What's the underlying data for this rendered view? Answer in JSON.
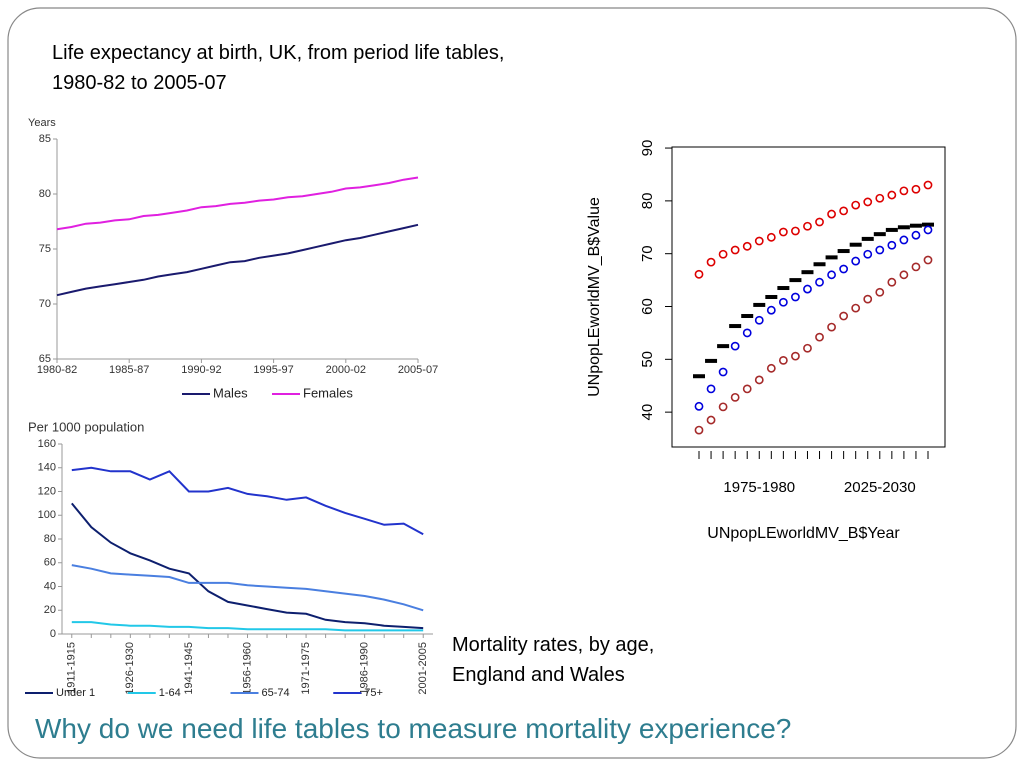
{
  "slide_title": "Why do we need life tables to measure mortality experience?",
  "chart_data": [
    {
      "type": "line",
      "title": "Life expectancy at birth, UK, from period life tables, 1980-82 to 2005-07",
      "ylabel": "Years",
      "categories": [
        "1980-82",
        null,
        null,
        null,
        null,
        "1985-87",
        null,
        null,
        null,
        null,
        "1990-92",
        null,
        null,
        null,
        null,
        "1995-97",
        null,
        null,
        null,
        null,
        "2000-02",
        null,
        null,
        null,
        null,
        "2005-07"
      ],
      "series": [
        {
          "name": "Males",
          "color": "#1a1a6e",
          "values": [
            70.8,
            71.1,
            71.4,
            71.6,
            71.8,
            72.0,
            72.2,
            72.5,
            72.7,
            72.9,
            73.2,
            73.5,
            73.8,
            73.9,
            74.2,
            74.4,
            74.6,
            74.9,
            75.2,
            75.5,
            75.8,
            76.0,
            76.3,
            76.6,
            76.9,
            77.2
          ]
        },
        {
          "name": "Females",
          "color": "#e020e0",
          "values": [
            76.8,
            77.0,
            77.3,
            77.4,
            77.6,
            77.7,
            78.0,
            78.1,
            78.3,
            78.5,
            78.8,
            78.9,
            79.1,
            79.2,
            79.4,
            79.5,
            79.7,
            79.8,
            80.0,
            80.2,
            80.5,
            80.6,
            80.8,
            81.0,
            81.3,
            81.5
          ]
        }
      ],
      "ylim": [
        65,
        85
      ],
      "yticks": [
        65,
        70,
        75,
        80,
        85
      ],
      "legend": "bottom"
    },
    {
      "type": "line",
      "title": "Mortality rates, by age, England and Wales",
      "ylabel": "Per 1000 population",
      "categories": [
        "1911-1915",
        null,
        null,
        "1926-1930",
        null,
        null,
        "1941-1945",
        null,
        null,
        "1956-1960",
        null,
        null,
        "1971-1975",
        null,
        null,
        "1986-1990",
        null,
        null,
        "2001-2005"
      ],
      "series": [
        {
          "name": "Under 1",
          "color": "#0d1f6e",
          "values": [
            110,
            90,
            77,
            68,
            62,
            55,
            51,
            36,
            27,
            24,
            21,
            18,
            17,
            12,
            10,
            9,
            7,
            6,
            5
          ]
        },
        {
          "name": "1-64",
          "color": "#22c8e8",
          "values": [
            10,
            10,
            8,
            7,
            7,
            6,
            6,
            5,
            5,
            4,
            4,
            4,
            4,
            4,
            3,
            3,
            3,
            3,
            3
          ]
        },
        {
          "name": "65-74",
          "color": "#4a7fe0",
          "values": [
            58,
            55,
            51,
            50,
            49,
            48,
            43,
            43,
            43,
            41,
            40,
            39,
            38,
            36,
            34,
            32,
            29,
            25,
            20
          ]
        },
        {
          "name": "75+",
          "color": "#2233cc",
          "values": [
            138,
            140,
            137,
            137,
            130,
            137,
            120,
            120,
            123,
            118,
            116,
            113,
            115,
            108,
            102,
            97,
            92,
            93,
            84
          ]
        }
      ],
      "ylim": [
        0,
        160
      ],
      "yticks": [
        0,
        20,
        40,
        60,
        80,
        100,
        120,
        140,
        160
      ],
      "legend": "bottom"
    },
    {
      "type": "scatter",
      "xlabel": "UNpopLEworldMV_B$Year",
      "ylabel": "UNpopLEworldMV_B$Value",
      "categories": [
        null,
        null,
        null,
        null,
        null,
        "1975-1980",
        null,
        null,
        null,
        null,
        null,
        null,
        null,
        null,
        null,
        "2025-2030",
        null,
        null,
        null,
        null
      ],
      "series": [
        {
          "color": "#000000",
          "marker": "dash",
          "values": [
            46.8,
            49.7,
            52.5,
            56.3,
            58.2,
            60.3,
            61.8,
            63.5,
            65.0,
            66.5,
            68.0,
            69.3,
            70.5,
            71.7,
            72.8,
            73.7,
            74.5,
            75.0,
            75.3,
            75.5
          ]
        },
        {
          "color": "#0000dd",
          "marker": "circle",
          "values": [
            41.1,
            44.4,
            47.6,
            52.5,
            55.0,
            57.4,
            59.3,
            60.8,
            61.8,
            63.3,
            64.6,
            66.0,
            67.1,
            68.6,
            69.9,
            70.7,
            71.6,
            72.6,
            73.5,
            74.5
          ]
        },
        {
          "color": "#dd0000",
          "marker": "circle",
          "values": [
            66.1,
            68.4,
            69.9,
            70.7,
            71.4,
            72.4,
            73.1,
            74.1,
            74.3,
            75.2,
            76.0,
            77.5,
            78.1,
            79.2,
            79.8,
            80.5,
            81.1,
            81.9,
            82.2,
            83.0
          ]
        },
        {
          "color": "#a52a2a",
          "marker": "circle",
          "values": [
            36.6,
            38.5,
            41.0,
            42.8,
            44.4,
            46.1,
            48.3,
            49.8,
            50.6,
            52.1,
            54.2,
            56.1,
            58.2,
            59.7,
            61.4,
            62.7,
            64.6,
            66.0,
            67.5,
            68.8
          ]
        }
      ],
      "ylim": [
        33.4,
        90.2
      ],
      "yticks": [
        40,
        50,
        60,
        70,
        80,
        90
      ],
      "box": true
    }
  ]
}
